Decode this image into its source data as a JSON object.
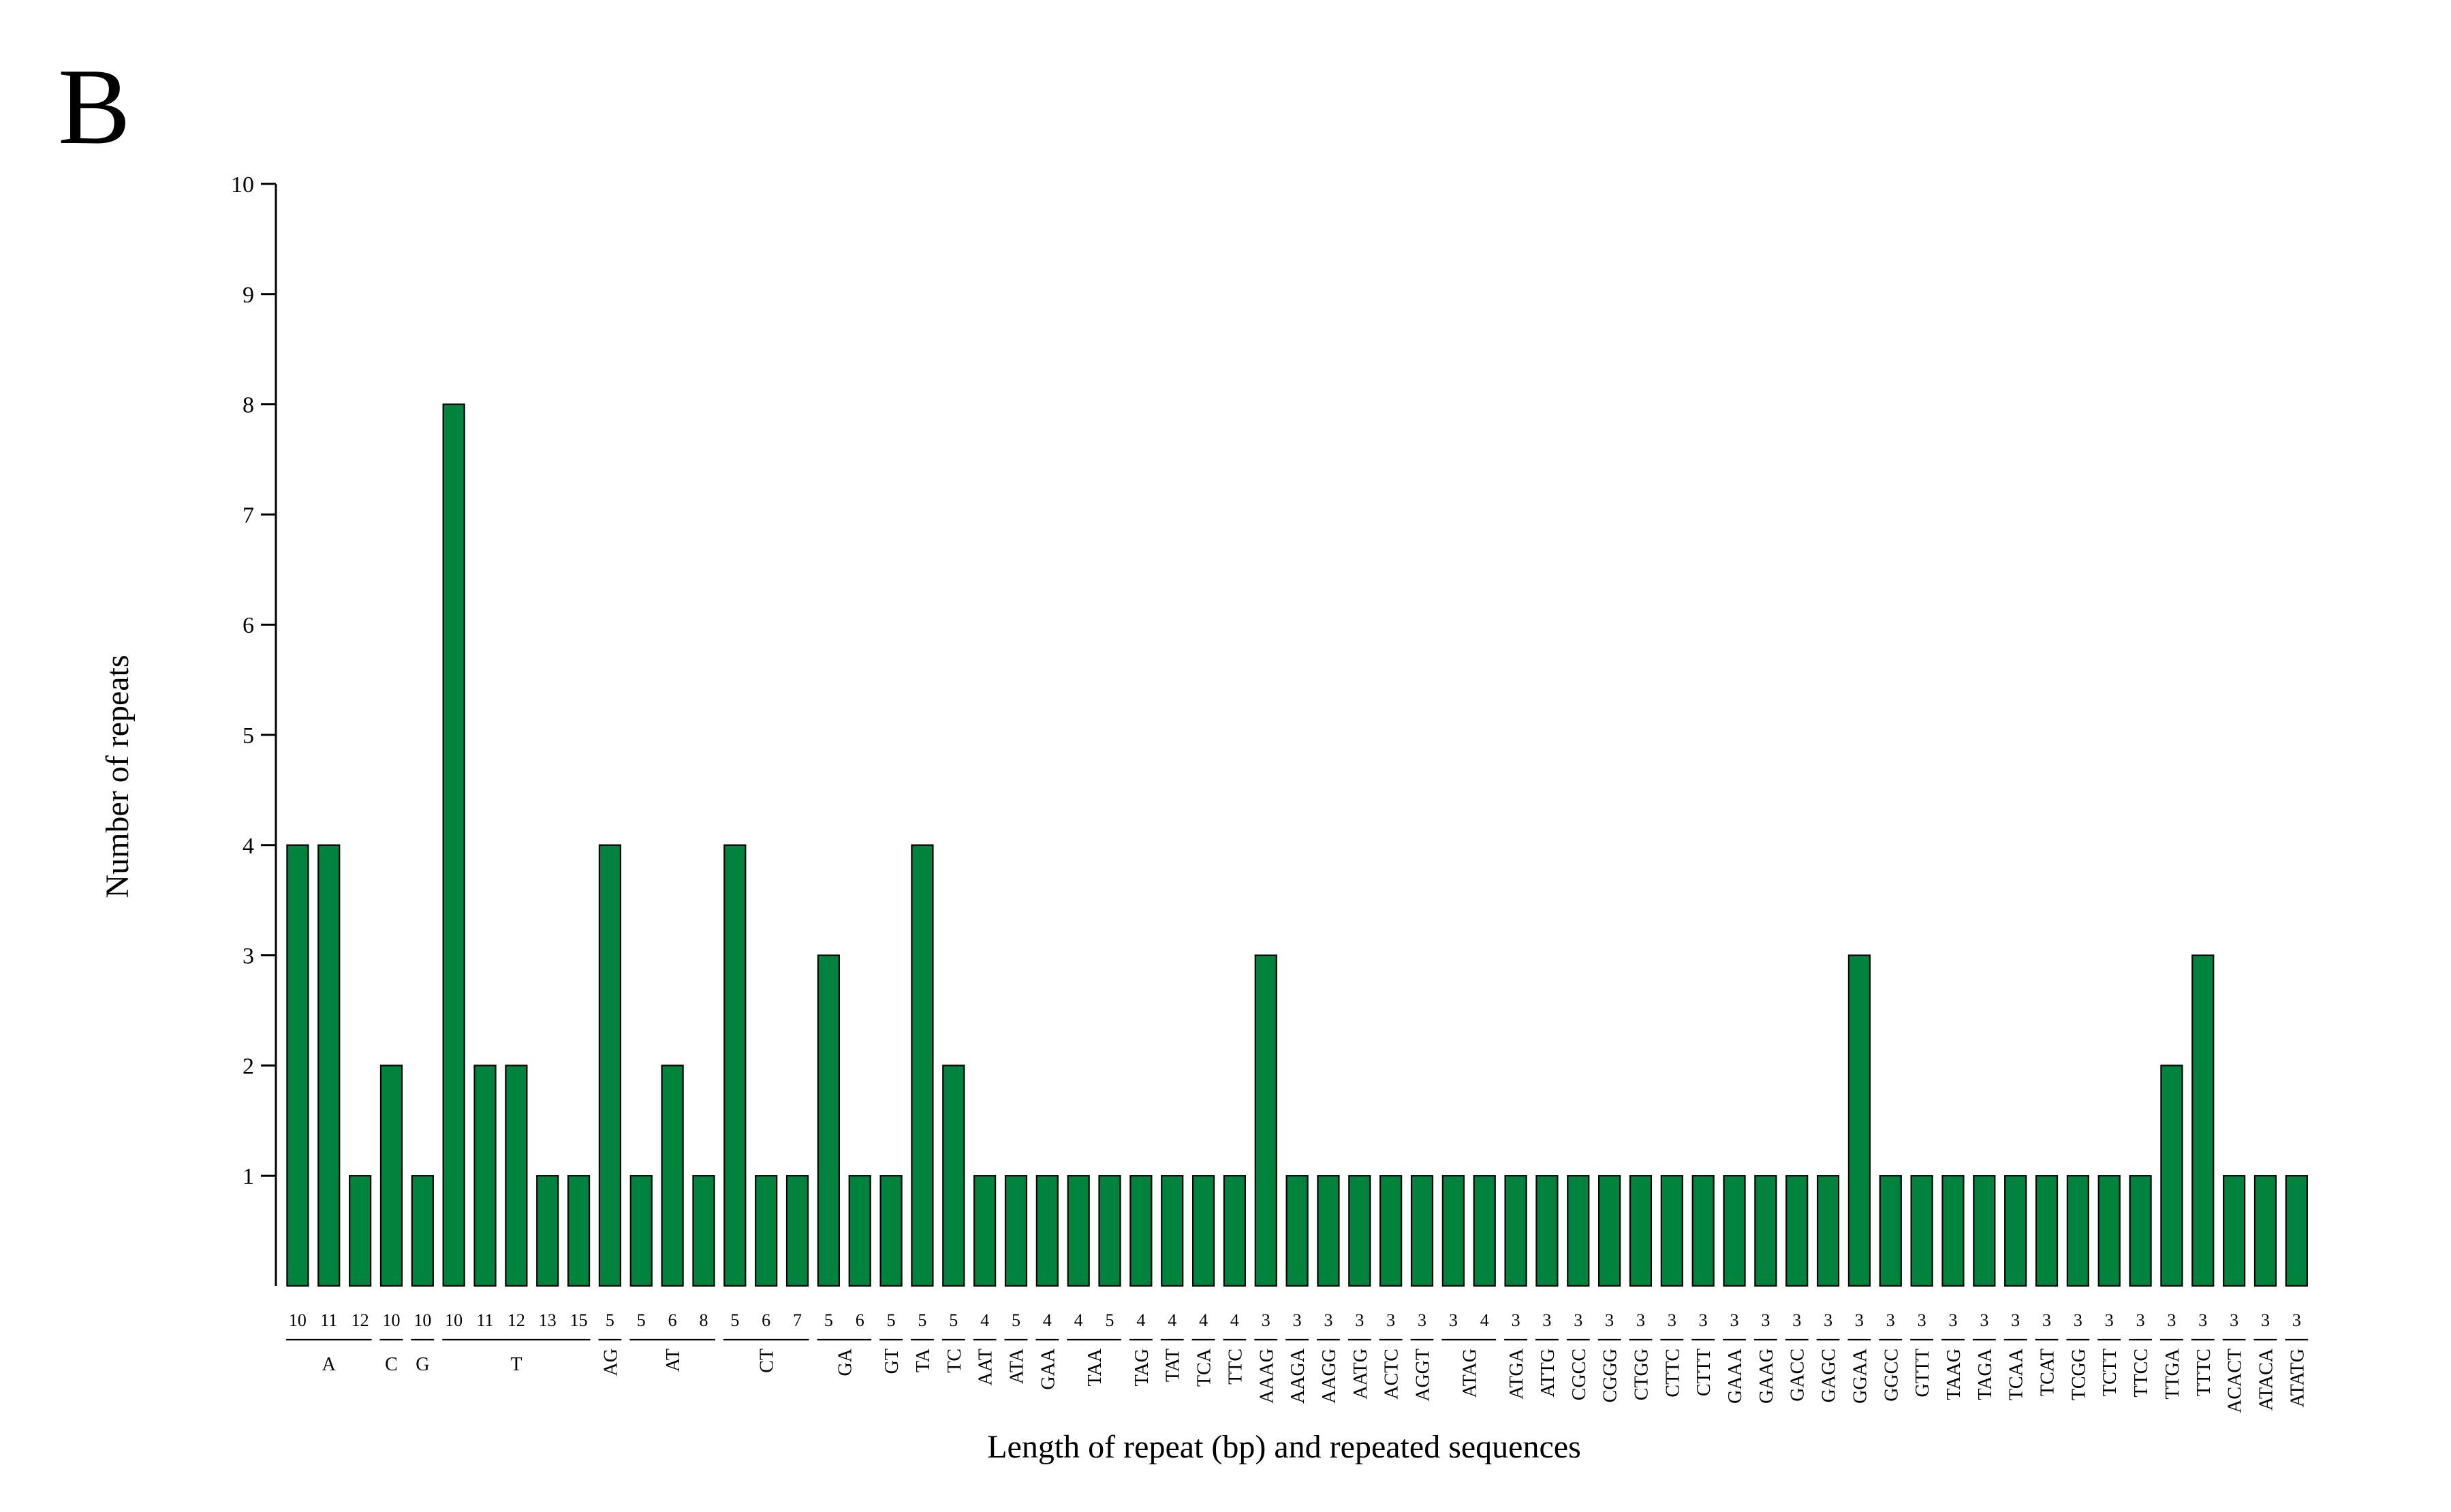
{
  "panel_label": "B",
  "chart_data": {
    "type": "bar",
    "ylabel": "Number of repeats",
    "xlabel": "Length of repeat (bp) and repeated sequences",
    "ylim": [
      0,
      10
    ],
    "yticks": [
      1,
      2,
      3,
      4,
      5,
      6,
      7,
      8,
      9,
      10
    ],
    "bar_color": "#00843d",
    "groups": [
      {
        "sequence": "A",
        "lengths": [
          "10",
          "11",
          "12"
        ],
        "values": [
          4,
          4,
          1
        ]
      },
      {
        "sequence": "C",
        "lengths": [
          "10"
        ],
        "values": [
          2
        ]
      },
      {
        "sequence": "G",
        "lengths": [
          "10"
        ],
        "values": [
          1
        ]
      },
      {
        "sequence": "T",
        "lengths": [
          "10",
          "11",
          "12",
          "13",
          "15"
        ],
        "values": [
          8,
          2,
          2,
          1,
          1
        ]
      },
      {
        "sequence": "AG",
        "lengths": [
          "5"
        ],
        "values": [
          4
        ]
      },
      {
        "sequence": "AT",
        "lengths": [
          "5",
          "6",
          "8"
        ],
        "values": [
          1,
          2,
          1
        ]
      },
      {
        "sequence": "CT",
        "lengths": [
          "5",
          "6",
          "7"
        ],
        "values": [
          4,
          1,
          1
        ]
      },
      {
        "sequence": "GA",
        "lengths": [
          "5",
          "6"
        ],
        "values": [
          3,
          1
        ]
      },
      {
        "sequence": "GT",
        "lengths": [
          "5"
        ],
        "values": [
          1
        ]
      },
      {
        "sequence": "TA",
        "lengths": [
          "5"
        ],
        "values": [
          4
        ]
      },
      {
        "sequence": "TC",
        "lengths": [
          "5"
        ],
        "values": [
          2
        ]
      },
      {
        "sequence": "AAT",
        "lengths": [
          "4"
        ],
        "values": [
          1
        ]
      },
      {
        "sequence": "ATA",
        "lengths": [
          "5"
        ],
        "values": [
          1
        ]
      },
      {
        "sequence": "GAA",
        "lengths": [
          "4"
        ],
        "values": [
          1
        ]
      },
      {
        "sequence": "TAA",
        "lengths": [
          "4",
          "5"
        ],
        "values": [
          1,
          1
        ]
      },
      {
        "sequence": "TAG",
        "lengths": [
          "4"
        ],
        "values": [
          1
        ]
      },
      {
        "sequence": "TAT",
        "lengths": [
          "4"
        ],
        "values": [
          1
        ]
      },
      {
        "sequence": "TCA",
        "lengths": [
          "4"
        ],
        "values": [
          1
        ]
      },
      {
        "sequence": "TTC",
        "lengths": [
          "4"
        ],
        "values": [
          1
        ]
      },
      {
        "sequence": "AAAG",
        "lengths": [
          "3"
        ],
        "values": [
          3
        ]
      },
      {
        "sequence": "AAGA",
        "lengths": [
          "3"
        ],
        "values": [
          1
        ]
      },
      {
        "sequence": "AAGG",
        "lengths": [
          "3"
        ],
        "values": [
          1
        ]
      },
      {
        "sequence": "AATG",
        "lengths": [
          "3"
        ],
        "values": [
          1
        ]
      },
      {
        "sequence": "ACTC",
        "lengths": [
          "3"
        ],
        "values": [
          1
        ]
      },
      {
        "sequence": "AGGT",
        "lengths": [
          "3"
        ],
        "values": [
          1
        ]
      },
      {
        "sequence": "ATAG",
        "lengths": [
          "3",
          "4"
        ],
        "values": [
          1,
          1
        ]
      },
      {
        "sequence": "ATGA",
        "lengths": [
          "3"
        ],
        "values": [
          1
        ]
      },
      {
        "sequence": "ATTG",
        "lengths": [
          "3"
        ],
        "values": [
          1
        ]
      },
      {
        "sequence": "CGCC",
        "lengths": [
          "3"
        ],
        "values": [
          1
        ]
      },
      {
        "sequence": "CGGG",
        "lengths": [
          "3"
        ],
        "values": [
          1
        ]
      },
      {
        "sequence": "CTGG",
        "lengths": [
          "3"
        ],
        "values": [
          1
        ]
      },
      {
        "sequence": "CTTC",
        "lengths": [
          "3"
        ],
        "values": [
          1
        ]
      },
      {
        "sequence": "CTTT",
        "lengths": [
          "3"
        ],
        "values": [
          1
        ]
      },
      {
        "sequence": "GAAA",
        "lengths": [
          "3"
        ],
        "values": [
          1
        ]
      },
      {
        "sequence": "GAAG",
        "lengths": [
          "3"
        ],
        "values": [
          1
        ]
      },
      {
        "sequence": "GACC",
        "lengths": [
          "3"
        ],
        "values": [
          1
        ]
      },
      {
        "sequence": "GAGC",
        "lengths": [
          "3"
        ],
        "values": [
          1
        ]
      },
      {
        "sequence": "GGAA",
        "lengths": [
          "3"
        ],
        "values": [
          3
        ]
      },
      {
        "sequence": "GGCC",
        "lengths": [
          "3"
        ],
        "values": [
          1
        ]
      },
      {
        "sequence": "GTTT",
        "lengths": [
          "3"
        ],
        "values": [
          1
        ]
      },
      {
        "sequence": "TAAG",
        "lengths": [
          "3"
        ],
        "values": [
          1
        ]
      },
      {
        "sequence": "TAGA",
        "lengths": [
          "3"
        ],
        "values": [
          1
        ]
      },
      {
        "sequence": "TCAA",
        "lengths": [
          "3"
        ],
        "values": [
          1
        ]
      },
      {
        "sequence": "TCAT",
        "lengths": [
          "3"
        ],
        "values": [
          1
        ]
      },
      {
        "sequence": "TCGG",
        "lengths": [
          "3"
        ],
        "values": [
          1
        ]
      },
      {
        "sequence": "TCTT",
        "lengths": [
          "3"
        ],
        "values": [
          1
        ]
      },
      {
        "sequence": "TTCC",
        "lengths": [
          "3"
        ],
        "values": [
          1
        ]
      },
      {
        "sequence": "TTGA",
        "lengths": [
          "3"
        ],
        "values": [
          2
        ]
      },
      {
        "sequence": "TTTC",
        "lengths": [
          "3"
        ],
        "values": [
          3
        ]
      },
      {
        "sequence": "ACACT",
        "lengths": [
          "3"
        ],
        "values": [
          1
        ]
      },
      {
        "sequence": "ATACA",
        "lengths": [
          "3"
        ],
        "values": [
          1
        ]
      },
      {
        "sequence": "ATATG",
        "lengths": [
          "3"
        ],
        "values": [
          1
        ]
      }
    ]
  }
}
